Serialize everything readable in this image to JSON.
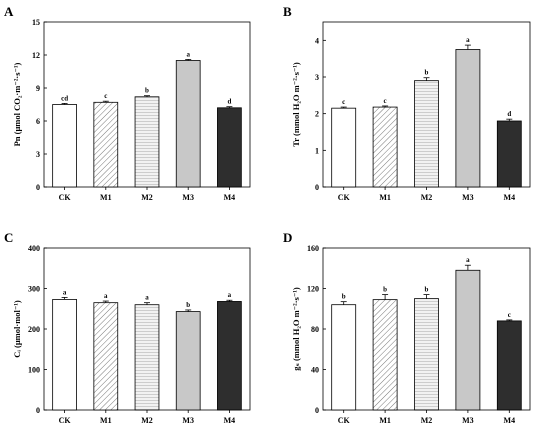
{
  "colors": {
    "ck": "#ffffff",
    "m1": "#ffffff",
    "m2": "#ffffff",
    "m3": "#c8c8c8",
    "m4": "#2e2e2e",
    "stroke": "#000000"
  },
  "fills": [
    "plain",
    "hatch",
    "dots",
    "plain",
    "plain"
  ],
  "chart_data": [
    {
      "type": "bar",
      "panel": "A",
      "ylabel": "Pn (μmol CO₂·m⁻²·s⁻¹)",
      "ylim": [
        0,
        15
      ],
      "yticks": [
        "0",
        "3",
        "6",
        "9",
        "12",
        "15"
      ],
      "tick_values": [
        0,
        3,
        6,
        9,
        12,
        15
      ],
      "categories": [
        "CK",
        "M1",
        "M2",
        "M3",
        "M4"
      ],
      "values": [
        7.5,
        7.7,
        8.2,
        11.5,
        7.2
      ],
      "errors": [
        0.1,
        0.1,
        0.1,
        0.1,
        0.1
      ],
      "sig": [
        "cd",
        "c",
        "b",
        "a",
        "d"
      ]
    },
    {
      "type": "bar",
      "panel": "B",
      "ylabel": "Tr (mmol H₂O m⁻²·s⁻¹)",
      "ylim": [
        0,
        4.5
      ],
      "yticks": [
        "0",
        "1",
        "2",
        "3",
        "4"
      ],
      "tick_values": [
        0,
        1,
        2,
        3,
        4
      ],
      "categories": [
        "CK",
        "M1",
        "M2",
        "M3",
        "M4"
      ],
      "values": [
        2.15,
        2.18,
        2.9,
        3.75,
        1.8
      ],
      "errors": [
        0.03,
        0.03,
        0.08,
        0.12,
        0.05
      ],
      "sig": [
        "c",
        "c",
        "b",
        "a",
        "d"
      ]
    },
    {
      "type": "bar",
      "panel": "C",
      "ylabel": "Cᵢ (μmol·mol⁻¹)",
      "ylim": [
        0,
        400
      ],
      "yticks": [
        "0",
        "100",
        "200",
        "300",
        "400"
      ],
      "tick_values": [
        0,
        100,
        200,
        300,
        400
      ],
      "categories": [
        "CK",
        "M1",
        "M2",
        "M3",
        "M4"
      ],
      "values": [
        273,
        265,
        260,
        243,
        268
      ],
      "errors": [
        5,
        4,
        5,
        4,
        3
      ],
      "sig": [
        "a",
        "a",
        "a",
        "b",
        "a"
      ]
    },
    {
      "type": "bar",
      "panel": "D",
      "ylabel": "gₛ (mmol H₂O m⁻²·s⁻¹)",
      "ylim": [
        0,
        160
      ],
      "yticks": [
        "0",
        "40",
        "80",
        "120",
        "160"
      ],
      "tick_values": [
        0,
        40,
        80,
        120,
        160
      ],
      "categories": [
        "CK",
        "M1",
        "M2",
        "M3",
        "M4"
      ],
      "values": [
        104,
        109,
        110,
        138,
        88
      ],
      "errors": [
        3,
        5,
        4,
        5,
        1
      ],
      "sig": [
        "b",
        "b",
        "b",
        "a",
        "c"
      ]
    }
  ]
}
